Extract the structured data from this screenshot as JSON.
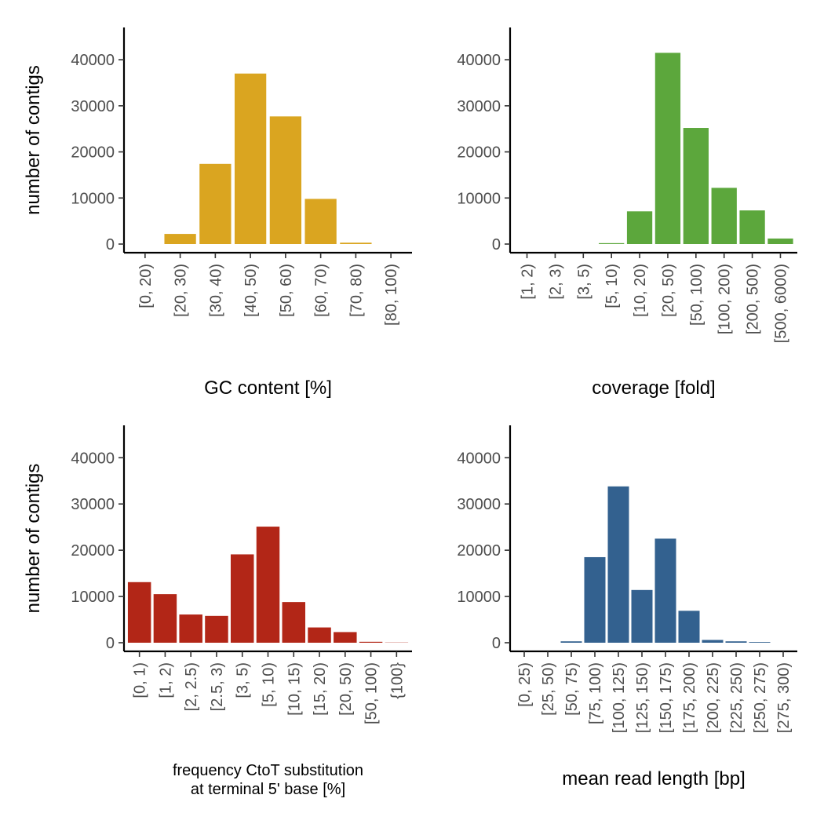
{
  "chart_data": [
    {
      "type": "bar",
      "categories": [
        "[0, 20)",
        "[20, 30)",
        "[30, 40)",
        "[40, 50)",
        "[50, 60)",
        "[60, 70)",
        "[70, 80)",
        "[80, 100)"
      ],
      "values": [
        0,
        2200,
        17400,
        37000,
        27700,
        9800,
        300,
        0
      ],
      "xlabel": "GC content [%]",
      "ylabel": "number of contigs",
      "ylim": [
        0,
        47000
      ],
      "yticks": [
        0,
        10000,
        20000,
        30000,
        40000
      ],
      "color": "#DAA520",
      "grid": false
    },
    {
      "type": "bar",
      "categories": [
        "[1, 2)",
        "[2, 3)",
        "[3, 5)",
        "[5, 10)",
        "[10, 20)",
        "[20, 50)",
        "[50, 100)",
        "[100, 200)",
        "[200, 500)",
        "[500, 6000)"
      ],
      "values": [
        0,
        0,
        0,
        200,
        7100,
        41500,
        25200,
        12200,
        7300,
        1200
      ],
      "xlabel": "coverage [fold]",
      "ylabel": "",
      "ylim": [
        0,
        47000
      ],
      "yticks": [
        0,
        10000,
        20000,
        30000,
        40000
      ],
      "color": "#5CA73C",
      "grid": false
    },
    {
      "type": "bar",
      "categories": [
        "[0, 1)",
        "[1, 2)",
        "[2, 2.5)",
        "[2.5, 3)",
        "[3, 5)",
        "[5, 10)",
        "[10, 15)",
        "[15, 20)",
        "[20, 50)",
        "[50, 100)",
        "{100}"
      ],
      "values": [
        13100,
        10500,
        6100,
        5800,
        19100,
        25100,
        8800,
        3300,
        2300,
        200,
        50
      ],
      "xlabel": "frequency CtoT substitution\nat terminal 5' base [%]",
      "ylabel": "number of contigs",
      "ylim": [
        0,
        47000
      ],
      "yticks": [
        0,
        10000,
        20000,
        30000,
        40000
      ],
      "color": "#B22617",
      "grid": false
    },
    {
      "type": "bar",
      "categories": [
        "[0, 25)",
        "[25, 50)",
        "[50, 75)",
        "[75, 100)",
        "[100, 125)",
        "[125, 150)",
        "[150, 175)",
        "[175, 200)",
        "[200, 225)",
        "[225, 250)",
        "[250, 275)",
        "[275, 300)"
      ],
      "values": [
        0,
        0,
        300,
        18500,
        33800,
        11400,
        22500,
        6900,
        600,
        300,
        150,
        0
      ],
      "xlabel": "mean read length [bp]",
      "ylabel": "",
      "ylim": [
        0,
        47000
      ],
      "yticks": [
        0,
        10000,
        20000,
        30000,
        40000
      ],
      "color": "#33618F",
      "grid": false
    }
  ]
}
